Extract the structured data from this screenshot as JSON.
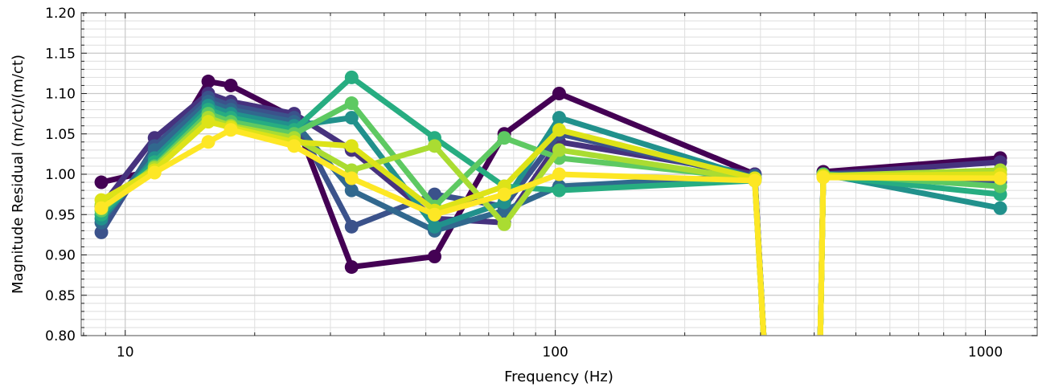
{
  "chart_data": {
    "type": "line",
    "xlabel": "Frequency (Hz)",
    "ylabel": "Magnitude Residual (m/ct)/(m/ct)",
    "x_scale": "log",
    "xlim": [
      7.9,
      1320
    ],
    "ylim": [
      0.8,
      1.2
    ],
    "grid": true,
    "x_ticks": [
      10,
      100,
      1000
    ],
    "x_tick_labels": [
      "10",
      "100",
      "1000"
    ],
    "y_ticks": [
      0.8,
      0.85,
      0.9,
      0.95,
      1.0,
      1.05,
      1.1,
      1.15,
      1.2
    ],
    "y_tick_labels": [
      "0.80",
      "0.85",
      "0.90",
      "0.95",
      "1.00",
      "1.05",
      "1.10",
      "1.15",
      "1.20"
    ],
    "x": [
      8.8,
      11.7,
      15.6,
      17.6,
      24.7,
      33.6,
      52.4,
      76.1,
      102.1,
      291.0,
      420.0,
      1083.0
    ],
    "series": [
      {
        "color": "#440154",
        "values": [
          0.99,
          1.005,
          1.115,
          1.11,
          1.07,
          0.885,
          0.898,
          1.05,
          1.1,
          1.0,
          1.003,
          1.02
        ]
      },
      {
        "color": "#46327e",
        "values": [
          0.96,
          1.045,
          1.1,
          1.09,
          1.075,
          1.03,
          0.945,
          0.94,
          1.04,
          1.0,
          1.0,
          1.015
        ]
      },
      {
        "color": "#3b528b",
        "values": [
          0.928,
          1.035,
          1.095,
          1.085,
          1.07,
          0.935,
          0.975,
          0.96,
          1.05,
          0.995,
          0.998,
          0.99
        ]
      },
      {
        "color": "#31688e",
        "values": [
          0.94,
          1.03,
          1.09,
          1.08,
          1.065,
          0.98,
          0.93,
          0.955,
          0.985,
          0.998,
          1.0,
          1.0
        ]
      },
      {
        "color": "#21918c",
        "values": [
          0.945,
          1.02,
          1.085,
          1.075,
          1.06,
          1.07,
          0.935,
          0.965,
          1.07,
          0.995,
          1.0,
          0.958
        ]
      },
      {
        "color": "#27ad81",
        "values": [
          0.95,
          1.015,
          1.08,
          1.07,
          1.055,
          1.12,
          1.045,
          0.985,
          0.98,
          0.992,
          0.998,
          0.975
        ]
      },
      {
        "color": "#5ec962",
        "values": [
          0.955,
          1.01,
          1.075,
          1.065,
          1.05,
          1.088,
          0.96,
          1.045,
          1.02,
          0.995,
          1.0,
          0.985
        ]
      },
      {
        "color": "#aadc32",
        "values": [
          0.962,
          1.008,
          1.07,
          1.06,
          1.045,
          1.005,
          1.035,
          0.938,
          1.03,
          0.993,
          0.998,
          1.005
        ]
      },
      {
        "color": "#dde318",
        "values": [
          0.968,
          1.005,
          1.065,
          1.058,
          1.04,
          1.035,
          0.955,
          0.985,
          1.055,
          0.995,
          0.998,
          1.0
        ]
      },
      {
        "color": "#fde725",
        "values": [
          0.958,
          1.002,
          1.04,
          1.055,
          1.035,
          0.995,
          0.95,
          0.975,
          1.0,
          0.992,
          0.996,
          0.995
        ]
      }
    ],
    "drop_segments": {
      "from_x": 291.0,
      "to_x": 308.0,
      "rise_from_x": 412.0,
      "rise_to_x": 420.0
    }
  }
}
